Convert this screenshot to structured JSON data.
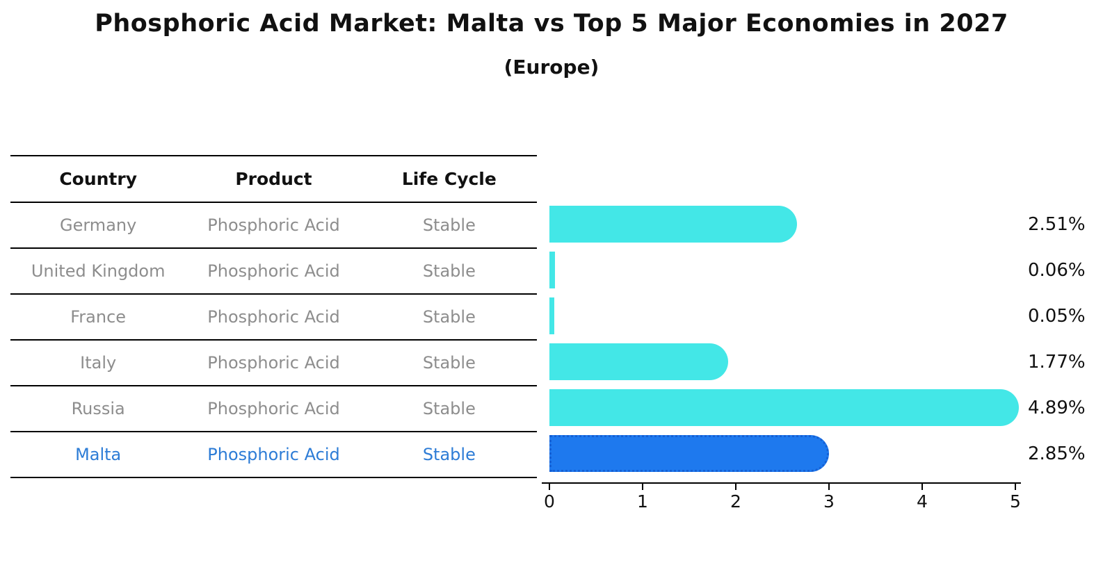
{
  "title": "Phosphoric Acid Market: Malta vs Top 5 Major Economies in 2027",
  "subtitle": "(Europe)",
  "table": {
    "headers": [
      "Country",
      "Product",
      "Life Cycle"
    ],
    "rows": [
      {
        "country": "Germany",
        "product": "Phosphoric Acid",
        "life_cycle": "Stable",
        "highlight": false
      },
      {
        "country": "United Kingdom",
        "product": "Phosphoric Acid",
        "life_cycle": "Stable",
        "highlight": false
      },
      {
        "country": "France",
        "product": "Phosphoric Acid",
        "life_cycle": "Stable",
        "highlight": false
      },
      {
        "country": "Italy",
        "product": "Phosphoric Acid",
        "life_cycle": "Stable",
        "highlight": false
      },
      {
        "country": "Russia",
        "product": "Phosphoric Acid",
        "life_cycle": "Stable",
        "highlight": false
      },
      {
        "country": "Malta",
        "product": "Phosphoric Acid",
        "life_cycle": "Stable",
        "highlight": true
      }
    ]
  },
  "chart_data": {
    "type": "bar",
    "orientation": "horizontal",
    "title": "Phosphoric Acid Market: Malta vs Top 5 Major Economies in 2027",
    "subtitle": "(Europe)",
    "categories": [
      "Germany",
      "United Kingdom",
      "France",
      "Italy",
      "Russia",
      "Malta"
    ],
    "values": [
      2.51,
      0.06,
      0.05,
      1.77,
      4.89,
      2.85
    ],
    "value_labels": [
      "2.51%",
      "0.06%",
      "0.05%",
      "1.77%",
      "4.89%",
      "2.85%"
    ],
    "highlight_index": 5,
    "x_ticks": [
      "0",
      "1",
      "2",
      "3",
      "4",
      "5"
    ],
    "xlim": [
      0,
      5
    ],
    "xlabel": "",
    "ylabel": "",
    "grid": false,
    "legend": false,
    "units": "percent"
  },
  "colors": {
    "bar_default": "#43e7e7",
    "bar_highlight": "#1e79ee",
    "bar_highlight_border": "#1560d4",
    "row_text": "#8d8d8d",
    "highlight_text": "#2d7cd6",
    "header_text": "#111111",
    "axis": "#000000"
  }
}
